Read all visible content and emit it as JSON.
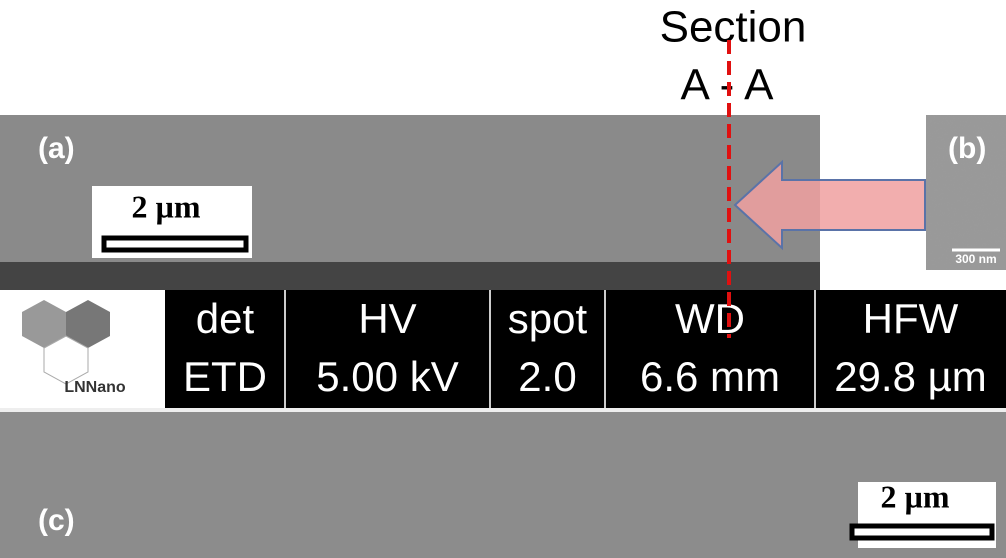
{
  "header": {
    "section_label": "Section",
    "section_name": "A - A"
  },
  "panel_a": {
    "label": "(a)",
    "scale_bar": "2 µm"
  },
  "panel_b": {
    "label": "(b)",
    "scale_bar": "300 nm"
  },
  "info_bar": {
    "logo": "LNNano",
    "columns": [
      {
        "name": "det",
        "value": "ETD"
      },
      {
        "name": "HV",
        "value": "5.00 kV"
      },
      {
        "name": "spot",
        "value": "2.0"
      },
      {
        "name": "WD",
        "value": "6.6 mm"
      },
      {
        "name": "HFW",
        "value": "29.8 µm"
      }
    ]
  },
  "panel_c": {
    "label": "(c)",
    "scale_bar": "2 µm"
  }
}
